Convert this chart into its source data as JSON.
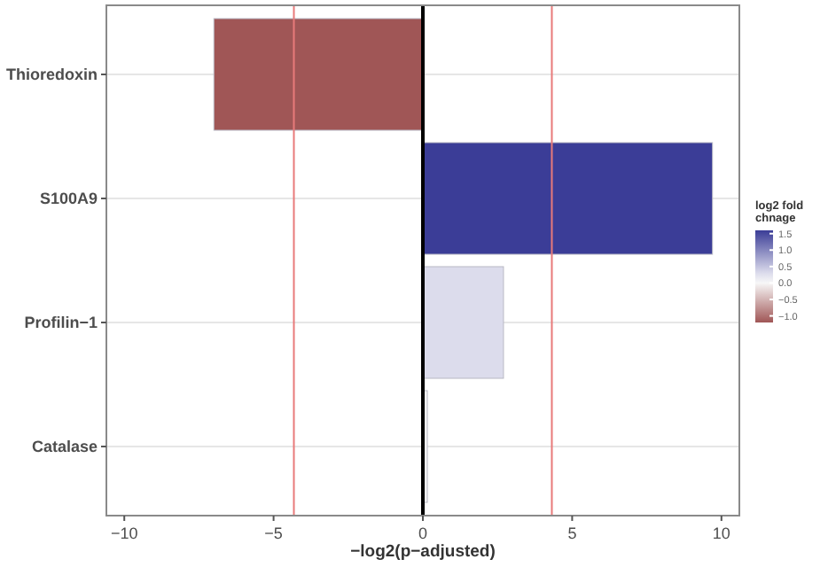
{
  "chart_data": {
    "type": "bar",
    "orientation": "horizontal",
    "categories": [
      "Thioredoxin",
      "S100A9",
      "Profilin−1",
      "Catalase"
    ],
    "values": [
      -7.0,
      9.7,
      2.7,
      0.15
    ],
    "colors": [
      "#a05656",
      "#3b3d97",
      "#dcdcec",
      "#f7f7f7"
    ],
    "cvalues": [
      -1.2,
      1.6,
      0.3,
      0.0
    ],
    "clabel": "log2 fold chnage",
    "clim": [
      -1.2,
      1.6
    ],
    "cticks": [
      {
        "value": 1.5,
        "label": "1.5"
      },
      {
        "value": 1,
        "label": "1.0"
      },
      {
        "value": 0.5,
        "label": "0.5"
      },
      {
        "value": 0,
        "label": "0.0"
      },
      {
        "value": -0.5,
        "label": "−0.5"
      },
      {
        "value": -1,
        "label": "−1.0"
      }
    ],
    "xlabel": "−log2(p−adjusted)",
    "xlim": [
      -10.6,
      10.6
    ],
    "xticks": [
      {
        "value": -10,
        "label": "−10"
      },
      {
        "value": -5,
        "label": "−5"
      },
      0,
      5,
      10
    ],
    "ref_lines": [
      {
        "axis": "x",
        "value": 0,
        "color": "#000000"
      },
      {
        "axis": "x",
        "value": -4.32,
        "color": "#e87a7a"
      },
      {
        "axis": "x",
        "value": 4.32,
        "color": "#e87a7a"
      }
    ],
    "grid": "y"
  }
}
